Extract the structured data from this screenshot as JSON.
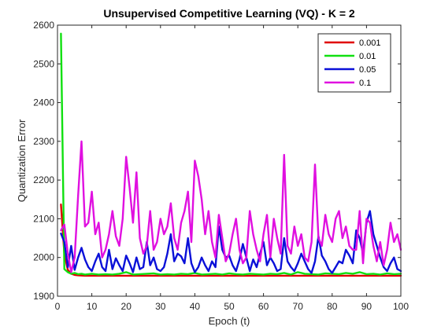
{
  "chart_data": {
    "type": "line",
    "title": "Unsupervised Competitive Learning (VQ) - K = 2",
    "xlabel": "Epoch (t)",
    "ylabel": "Quantization Error",
    "xlim": [
      0,
      100
    ],
    "ylim": [
      1900,
      2600
    ],
    "xticks": [
      0,
      10,
      20,
      30,
      40,
      50,
      60,
      70,
      80,
      90,
      100
    ],
    "yticks": [
      1900,
      2000,
      2100,
      2200,
      2300,
      2400,
      2500,
      2600
    ],
    "grid": false,
    "legend_position": "top-right",
    "series": [
      {
        "name": "0.001",
        "color": "#e00000",
        "x": [
          1,
          2,
          3,
          4,
          5,
          6,
          8,
          10,
          15,
          20,
          25,
          30,
          35,
          40,
          45,
          50,
          55,
          60,
          65,
          70,
          75,
          80,
          85,
          90,
          95,
          100
        ],
        "y": [
          2137,
          2010,
          1968,
          1958,
          1955,
          1954,
          1953,
          1953,
          1953,
          1953,
          1953,
          1953,
          1953,
          1953,
          1953,
          1953,
          1953,
          1953,
          1953,
          1953,
          1953,
          1953,
          1953,
          1953,
          1953,
          1953
        ]
      },
      {
        "name": "0.01",
        "color": "#10e010",
        "x": [
          1,
          2,
          3,
          4,
          5,
          6,
          7,
          8,
          9,
          10,
          12,
          14,
          16,
          18,
          20,
          22,
          24,
          26,
          28,
          30,
          32,
          34,
          36,
          38,
          40,
          42,
          44,
          46,
          48,
          50,
          52,
          54,
          56,
          58,
          60,
          62,
          64,
          66,
          68,
          70,
          72,
          74,
          76,
          78,
          80,
          82,
          84,
          86,
          88,
          90,
          92,
          94,
          96,
          98,
          100
        ],
        "y": [
          2578,
          1970,
          1962,
          1958,
          1960,
          1957,
          1958,
          1956,
          1957,
          1958,
          1956,
          1957,
          1956,
          1958,
          1962,
          1956,
          1957,
          1958,
          1959,
          1956,
          1957,
          1956,
          1958,
          1957,
          1960,
          1956,
          1957,
          1958,
          1956,
          1959,
          1957,
          1956,
          1958,
          1957,
          1956,
          1958,
          1957,
          1960,
          1956,
          1962,
          1958,
          1957,
          1956,
          1959,
          1958,
          1957,
          1960,
          1958,
          1962,
          1957,
          1958,
          1956,
          1959,
          1957,
          1958
        ]
      },
      {
        "name": "0.05",
        "color": "#0a10d8",
        "x": [
          1,
          2,
          3,
          4,
          5,
          6,
          7,
          8,
          9,
          10,
          11,
          12,
          13,
          14,
          15,
          16,
          17,
          18,
          19,
          20,
          21,
          22,
          23,
          24,
          25,
          26,
          27,
          28,
          29,
          30,
          31,
          32,
          33,
          34,
          35,
          36,
          37,
          38,
          39,
          40,
          41,
          42,
          43,
          44,
          45,
          46,
          47,
          48,
          49,
          50,
          51,
          52,
          53,
          54,
          55,
          56,
          57,
          58,
          59,
          60,
          61,
          62,
          63,
          64,
          65,
          66,
          67,
          68,
          69,
          70,
          71,
          72,
          73,
          74,
          75,
          76,
          77,
          78,
          79,
          80,
          81,
          82,
          83,
          84,
          85,
          86,
          87,
          88,
          89,
          90,
          91,
          92,
          93,
          94,
          95,
          96,
          97,
          98,
          99,
          100
        ],
        "y": [
          2062,
          2040,
          1975,
          2030,
          1968,
          2000,
          2025,
          1995,
          1975,
          1965,
          1990,
          2010,
          1975,
          1965,
          2020,
          1970,
          1998,
          1980,
          1965,
          2005,
          1985,
          1962,
          2000,
          1970,
          1975,
          2040,
          1980,
          2000,
          1970,
          1965,
          1975,
          2010,
          2060,
          1990,
          2010,
          2003,
          1985,
          2050,
          1985,
          1962,
          1975,
          2000,
          1980,
          1965,
          1990,
          1975,
          2080,
          2020,
          2000,
          2005,
          1980,
          1965,
          1995,
          2035,
          2000,
          1965,
          1995,
          1975,
          2010,
          2040,
          1980,
          2000,
          1985,
          1965,
          1970,
          2050,
          1990,
          1975,
          1965,
          1985,
          2010,
          1990,
          1970,
          1960,
          1990,
          2055,
          2005,
          1990,
          1970,
          1960,
          1975,
          1990,
          1985,
          2020,
          2005,
          1985,
          2070,
          2050,
          2010,
          2090,
          2120,
          2060,
          2030,
          2000,
          1975,
          1965,
          1985,
          2000,
          1970,
          1965
        ]
      },
      {
        "name": "0.1",
        "color": "#e010e0",
        "x": [
          1,
          2,
          3,
          4,
          5,
          6,
          7,
          8,
          9,
          10,
          11,
          12,
          13,
          14,
          15,
          16,
          17,
          18,
          19,
          20,
          21,
          22,
          23,
          24,
          25,
          26,
          27,
          28,
          29,
          30,
          31,
          32,
          33,
          34,
          35,
          36,
          37,
          38,
          39,
          40,
          41,
          42,
          43,
          44,
          45,
          46,
          47,
          48,
          49,
          50,
          51,
          52,
          53,
          54,
          55,
          56,
          57,
          58,
          59,
          60,
          61,
          62,
          63,
          64,
          65,
          66,
          67,
          68,
          69,
          70,
          71,
          72,
          73,
          74,
          75,
          76,
          77,
          78,
          79,
          80,
          81,
          82,
          83,
          84,
          85,
          86,
          87,
          88,
          89,
          90,
          91,
          92,
          93,
          94,
          95,
          96,
          97,
          98,
          99,
          100
        ],
        "y": [
          2070,
          2085,
          2010,
          1962,
          2000,
          2160,
          2300,
          2080,
          2090,
          2170,
          2060,
          2090,
          2000,
          2020,
          2060,
          2120,
          2055,
          2030,
          2100,
          2260,
          2180,
          2090,
          2220,
          2050,
          2010,
          2030,
          2120,
          2020,
          2040,
          2100,
          2060,
          2080,
          2140,
          2050,
          2020,
          2090,
          2120,
          2170,
          2040,
          2250,
          2210,
          2150,
          2060,
          2120,
          2040,
          2000,
          2110,
          2050,
          1990,
          2010,
          2060,
          2100,
          2020,
          1985,
          2000,
          2120,
          2060,
          2020,
          1990,
          2060,
          2110,
          2000,
          2100,
          2050,
          2010,
          2265,
          2030,
          2010,
          2080,
          2030,
          2060,
          2000,
          1990,
          2040,
          2240,
          2050,
          2030,
          2110,
          2060,
          2040,
          2100,
          2120,
          2050,
          2080,
          2030,
          2020,
          2020,
          2120,
          1985,
          2100,
          2090,
          2030,
          1990,
          2040,
          1980,
          2020,
          2090,
          2040,
          2060,
          2020
        ]
      }
    ]
  }
}
